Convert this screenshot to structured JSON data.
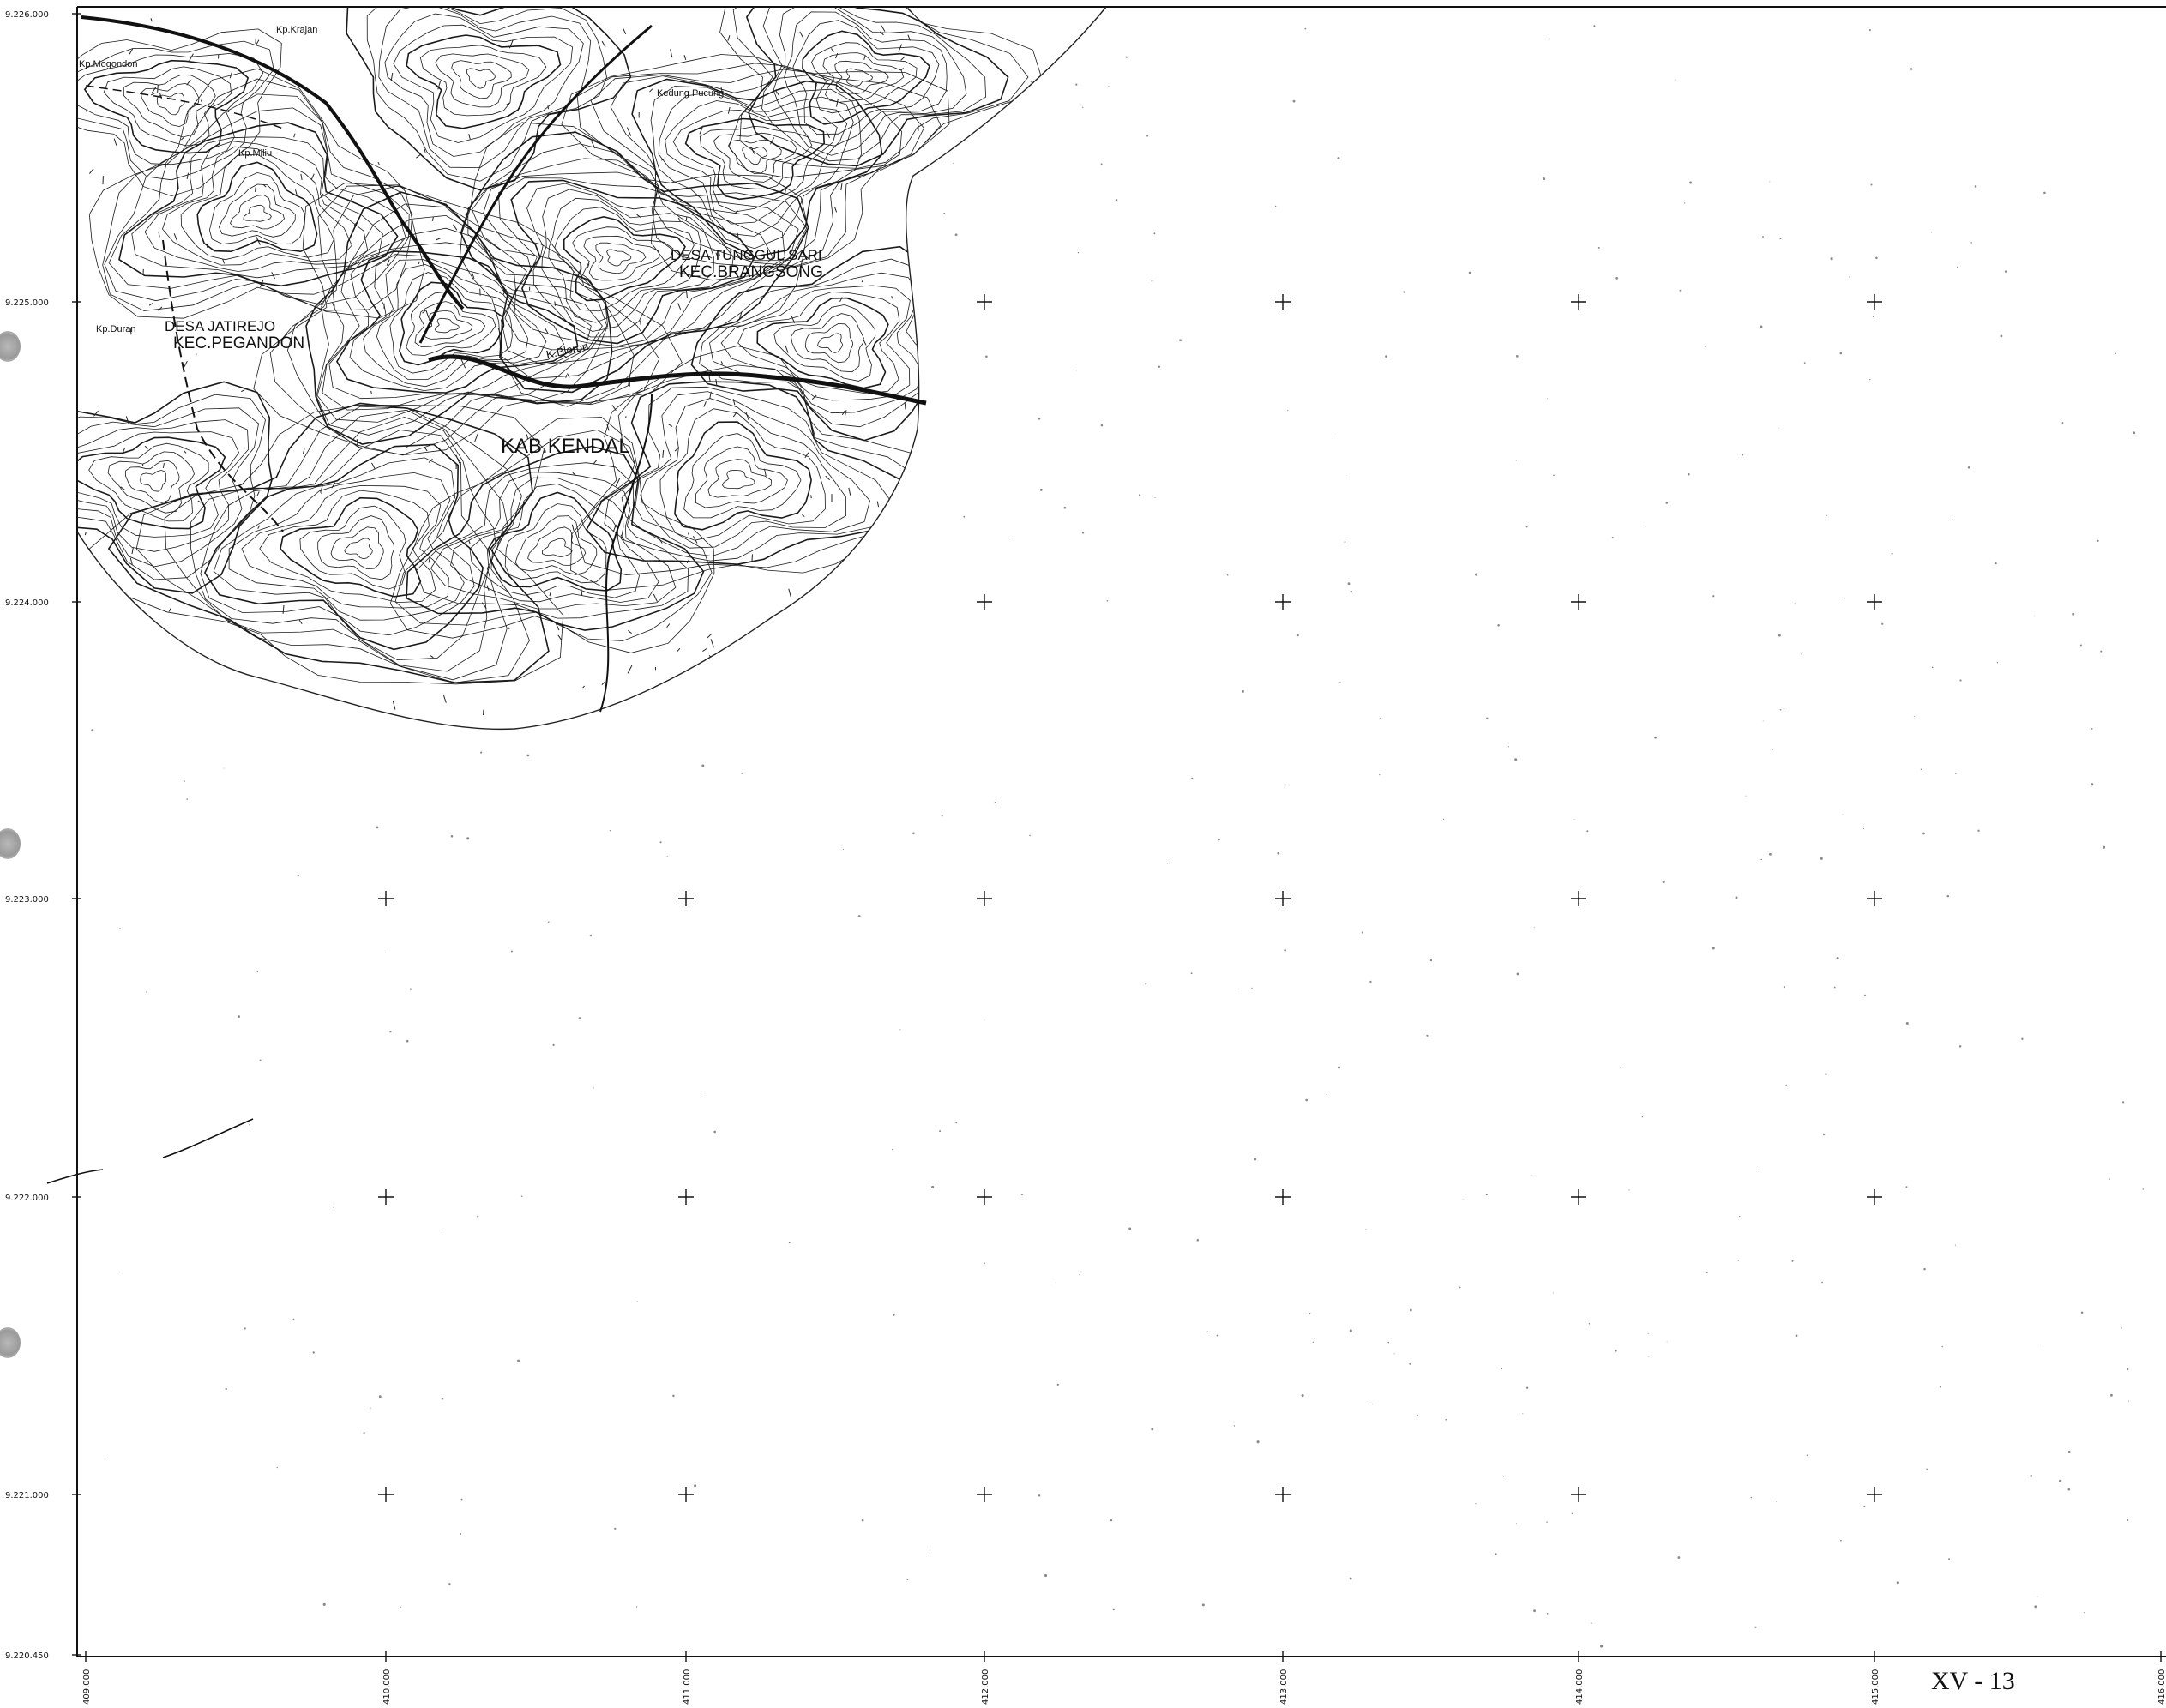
{
  "map": {
    "easting_ticks": [
      "409.000",
      "410.000",
      "411.000",
      "412.000",
      "413.000",
      "414.000",
      "415.000",
      "416.000"
    ],
    "northing_ticks": [
      "9.226.000",
      "9.225.000",
      "9.224.000",
      "9.223.000",
      "9.222.000",
      "9.221.000",
      "9.220.450"
    ],
    "labels": {
      "desa_jatirejo": "DESA JATIREJO",
      "kec_pegandon": "KEC.PEGANDON",
      "desa_tunggul_sari": "DESA TUNGGUL SARI",
      "kec_brangsong": "KEC.BRANGSONG",
      "kab_kendal": "KAB.KENDAL",
      "kp_krajan": "Kp.Krajan",
      "kp_mogondon": "Kp.Mogondon",
      "kp_miliu": "Kp.Miliu",
      "kp_duran": "Kp.Duran",
      "k_bloron": "K.Bloron",
      "kedung_pucung": "Kedung Pucung"
    }
  },
  "page_number": "XV - 13",
  "colors": {
    "ink": "#111111",
    "paper": "#ffffff"
  }
}
